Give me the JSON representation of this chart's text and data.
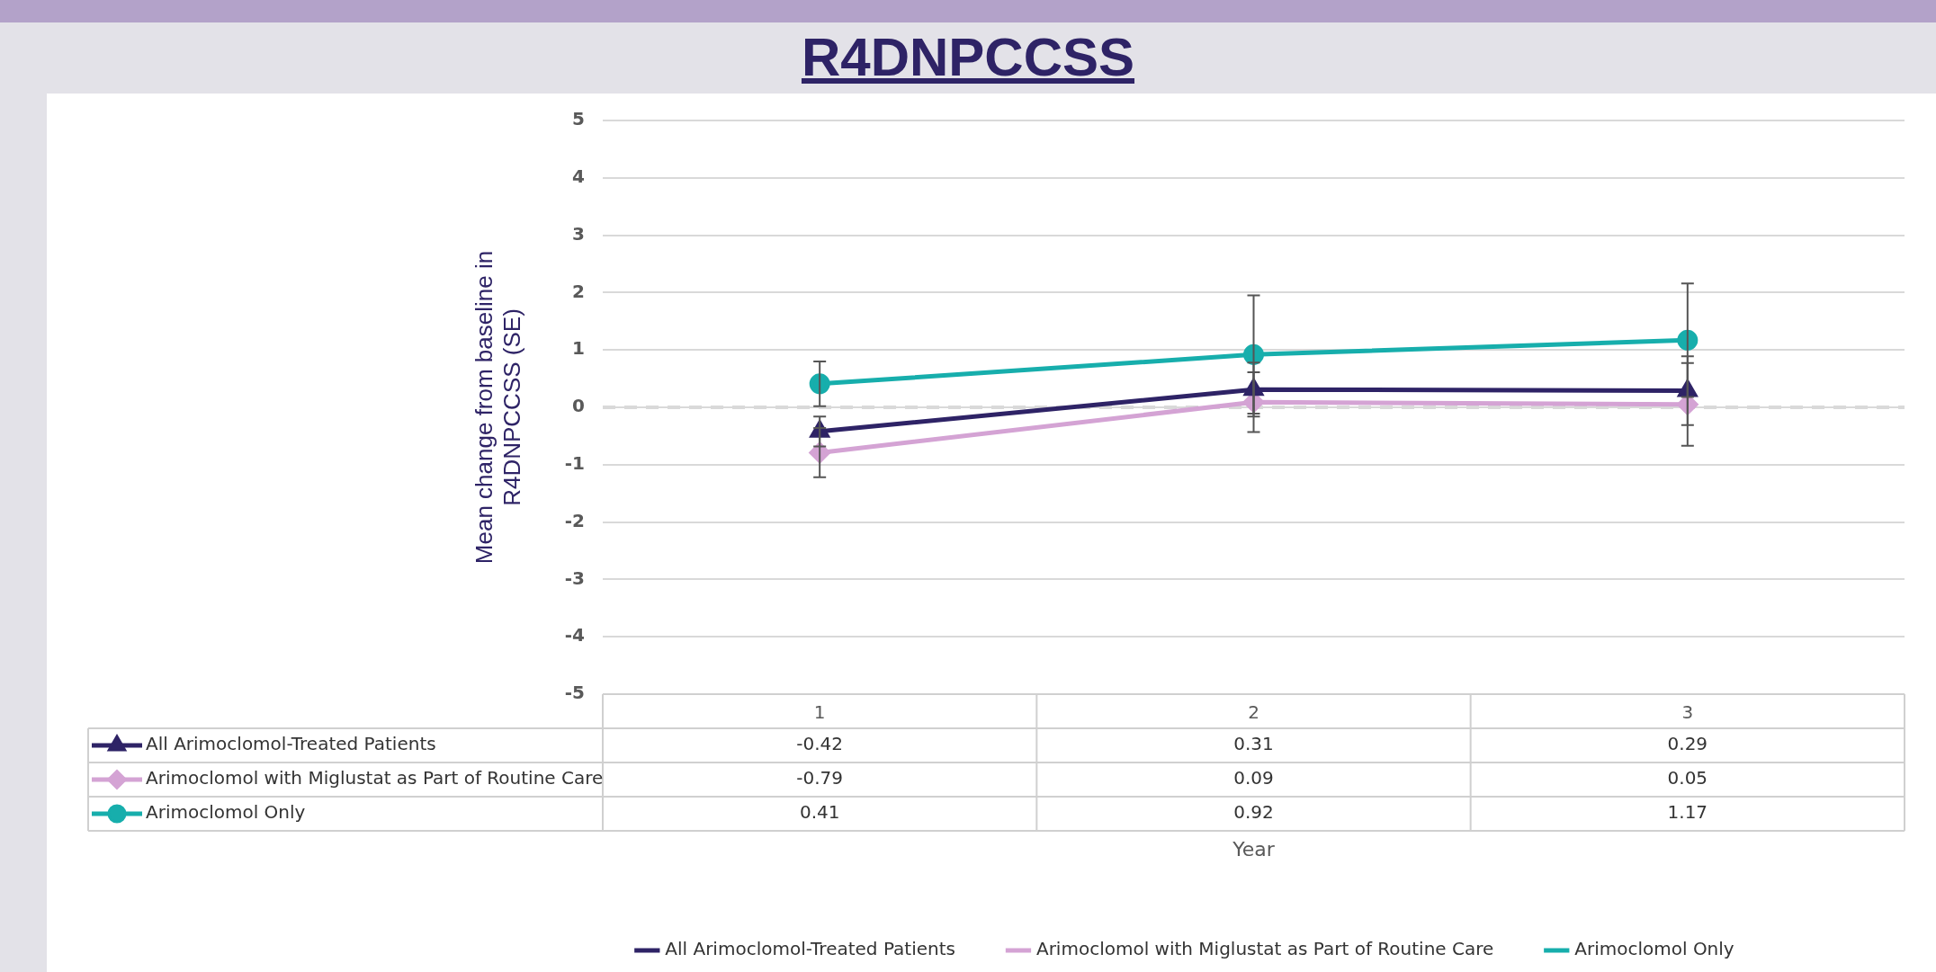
{
  "chart_data": {
    "type": "line",
    "title": "R4DNPCCSS",
    "annotations": [
      "Year"
    ],
    "ylabel": "Mean change from baseline in R4DNPCCSS (SE)",
    "categories": [
      "1",
      "2",
      "3"
    ],
    "series": [
      {
        "name": "All Arimoclomol-Treated Patients",
        "color": "#2e2366",
        "marker": "triangle",
        "values": [
          -0.42,
          0.31,
          0.29
        ],
        "errors": [
          0.26,
          0.47,
          0.6
        ]
      },
      {
        "name": "Arimoclomol with Miglustat as Part of Routine Care",
        "color": "#d4a3d4",
        "marker": "diamond",
        "values": [
          -0.79,
          0.09,
          0.05
        ],
        "errors": [
          0.43,
          0.52,
          0.72
        ]
      },
      {
        "name": "Arimoclomol Only",
        "color": "#17aeac",
        "marker": "circle",
        "values": [
          0.41,
          0.92,
          1.17
        ],
        "errors": [
          0.39,
          1.03,
          0.99
        ]
      }
    ],
    "ylim": [
      -5,
      5
    ],
    "yticks": [
      -5,
      -4,
      -3,
      -2,
      -1,
      0,
      1,
      2,
      3,
      4,
      5
    ],
    "grid": "y",
    "legend": "bottom",
    "data_labels": true,
    "line_style": "solid",
    "ref_lines": [
      {
        "axis": "y",
        "value": 0,
        "color": "#d9d9d9",
        "line_style": "dashed"
      }
    ]
  }
}
